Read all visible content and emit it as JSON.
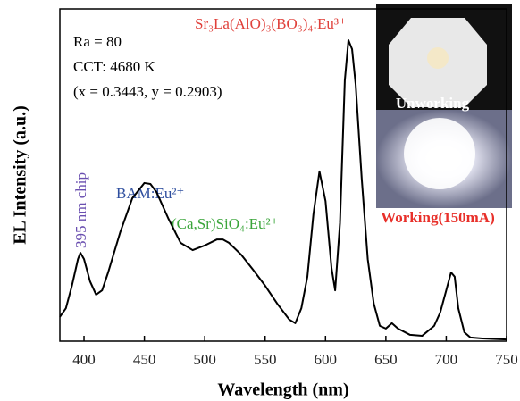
{
  "chart_data": {
    "type": "line",
    "x_label": "Wavelength (nm)",
    "y_label": "EL Intensity (a.u.)",
    "xlim": [
      380,
      750
    ],
    "xticks": [
      400,
      450,
      500,
      550,
      600,
      650,
      700,
      750
    ],
    "ylim": [
      0,
      100
    ],
    "x": [
      380,
      385,
      390,
      395,
      397,
      400,
      405,
      410,
      415,
      420,
      430,
      440,
      450,
      455,
      460,
      470,
      480,
      490,
      500,
      510,
      515,
      520,
      530,
      540,
      550,
      560,
      570,
      575,
      580,
      585,
      590,
      595,
      600,
      605,
      608,
      612,
      616,
      619,
      622,
      625,
      630,
      635,
      640,
      645,
      650,
      655,
      660,
      670,
      680,
      690,
      695,
      700,
      704,
      707,
      710,
      715,
      720,
      730,
      750
    ],
    "series": [
      {
        "color": "#000000",
        "values": [
          7.3,
          9.9,
          16.7,
          24.7,
          26.6,
          24.7,
          18.0,
          14.0,
          15.3,
          20.7,
          32.8,
          43.0,
          47.6,
          47.3,
          44.9,
          36.8,
          29.6,
          27.4,
          28.8,
          30.6,
          30.6,
          29.6,
          26.1,
          21.5,
          16.7,
          11.3,
          6.5,
          5.4,
          9.9,
          19.4,
          38.2,
          51.1,
          42.2,
          22.0,
          15.3,
          35.5,
          78.5,
          90.6,
          87.9,
          77.2,
          48.9,
          24.7,
          11.3,
          4.6,
          3.8,
          5.4,
          3.8,
          1.9,
          1.6,
          4.6,
          8.6,
          15.3,
          20.7,
          19.4,
          9.9,
          2.7,
          1.1,
          0.8,
          0.5
        ]
      }
    ],
    "annotations": [
      {
        "text": "Ra = 80",
        "color": "#000000"
      },
      {
        "text": "CCT: 4680 K",
        "color": "#000000"
      },
      {
        "text": "(x = 0.3443, y = 0.2903)",
        "color": "#000000"
      },
      {
        "text": "395 nm chip",
        "color": "#6a4fb0"
      },
      {
        "text": "BAM:Eu²⁺",
        "color": "#2f4f9f"
      },
      {
        "text": "(Ca,Sr)SiO₄:Eu²⁺",
        "color": "#3aa53a"
      },
      {
        "text": "Sr₃La(AlO)₃(BO₃)₄:Eu³⁺",
        "color": "#e0403a"
      },
      {
        "text": "Unworking",
        "color": "#ffffff"
      },
      {
        "text": "Working(150mA)",
        "color": "#e8302a"
      }
    ]
  }
}
